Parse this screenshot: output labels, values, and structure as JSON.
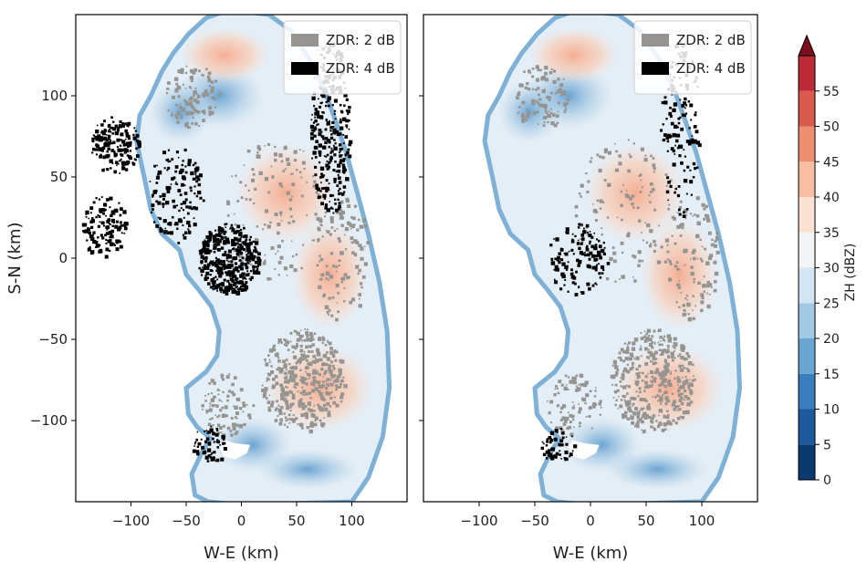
{
  "chart_data": [
    {
      "type": "heatmap",
      "xlabel": "W-E (km)",
      "ylabel": "S-N (km)",
      "xlim": [
        -150,
        150
      ],
      "ylim": [
        -150,
        150
      ],
      "xticks": [
        -100,
        -50,
        0,
        50,
        100
      ],
      "yticks": [
        100,
        50,
        0,
        -50,
        -100
      ],
      "legend": {
        "placement": "top-right",
        "entries": [
          {
            "label": "ZDR: 2 dB",
            "color": "#959490"
          },
          {
            "label": "ZDR: 4 dB",
            "color": "#000000"
          }
        ]
      }
    },
    {
      "type": "heatmap",
      "xlabel": "W-E (km)",
      "ylabel": "",
      "xlim": [
        -150,
        150
      ],
      "ylim": [
        -150,
        150
      ],
      "xticks": [
        -100,
        -50,
        0,
        50,
        100
      ],
      "yticks": [],
      "legend": {
        "placement": "top-right",
        "entries": [
          {
            "label": "ZDR: 2 dB",
            "color": "#959490"
          },
          {
            "label": "ZDR: 4 dB",
            "color": "#000000"
          }
        ]
      }
    }
  ],
  "colorbar": {
    "label": "ZH (dBZ)",
    "ticks": [
      0,
      5,
      10,
      15,
      20,
      25,
      30,
      35,
      40,
      45,
      50,
      55
    ],
    "bounds": [
      0,
      5,
      10,
      15,
      20,
      25,
      30,
      35,
      40,
      45,
      50,
      55,
      60
    ],
    "colors": [
      "#0a3a6e",
      "#1d5a9c",
      "#3a7fbd",
      "#6aa6d2",
      "#a2c9e3",
      "#d3e5f1",
      "#f2f4f6",
      "#fbe1d3",
      "#f7bea3",
      "#ee8f72",
      "#d95a4e",
      "#bb2b35"
    ],
    "extend_color": "#7a0d1e"
  }
}
